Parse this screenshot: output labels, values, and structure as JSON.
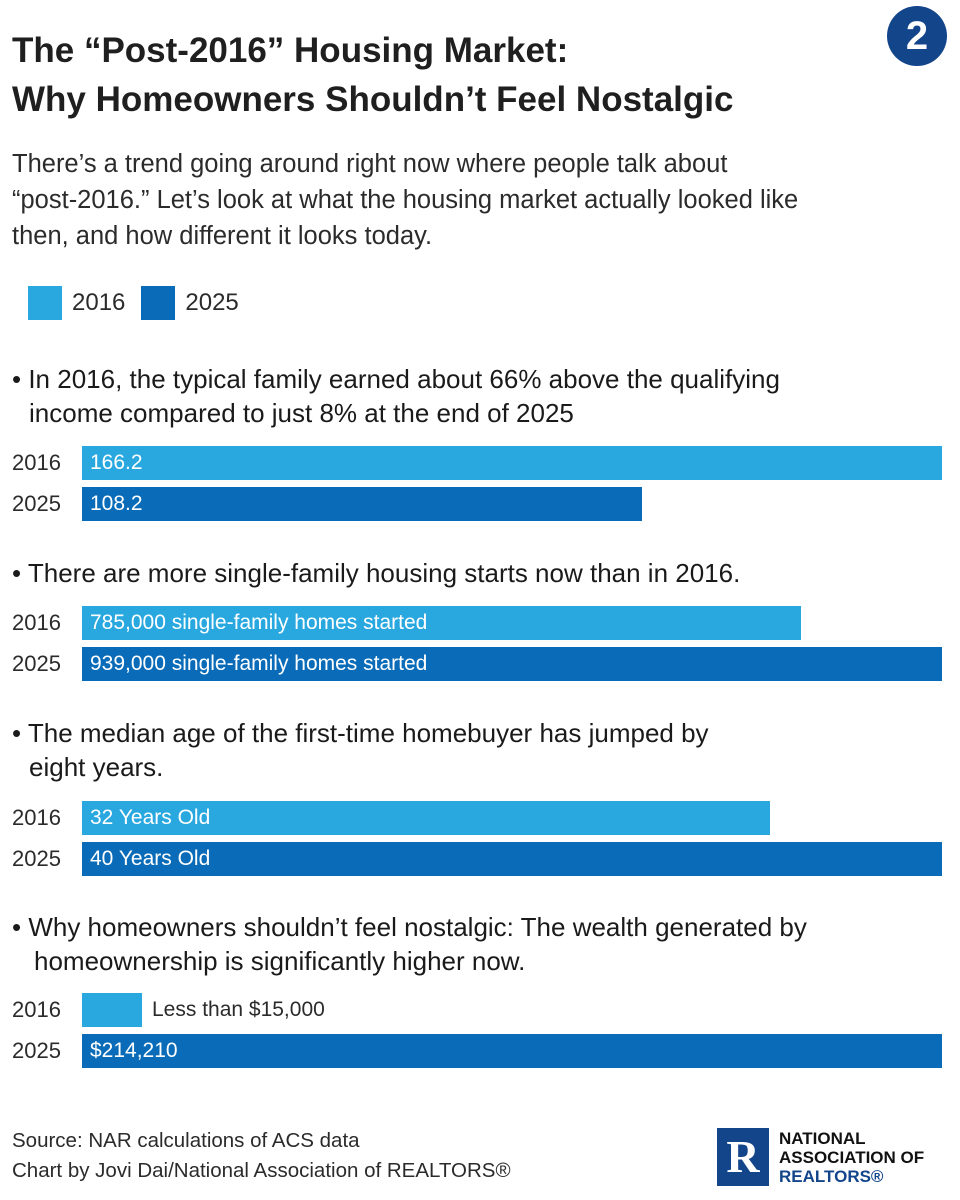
{
  "header": {
    "title_line1": "The “Post-2016” Housing Market:",
    "title_line2": "Why Homeowners Shouldn’t Feel Nostalgic",
    "badge_number": "2",
    "subtitle_line1": "There’s a trend going around right now where people talk about",
    "subtitle_line2": "“post-2016.” Let’s look at what the housing market actually looked like",
    "subtitle_line3": "then, and how different it looks today."
  },
  "legend": [
    {
      "label": "2016",
      "color": "#29a8e0"
    },
    {
      "label": "2025",
      "color": "#0a6cb8"
    }
  ],
  "chart_data": [
    {
      "type": "bar",
      "orientation": "horizontal",
      "heading_line1": "• In 2016, the typical family earned about 66% above the qualifying",
      "heading_line2": "income compared to just 8% at the end of 2025",
      "categories": [
        "2016",
        "2025"
      ],
      "values": [
        166.2,
        108.2
      ],
      "labels": [
        "166.2",
        "108.2"
      ]
    },
    {
      "type": "bar",
      "orientation": "horizontal",
      "heading_line1": "• There are more single-family housing starts now than in 2016.",
      "categories": [
        "2016",
        "2025"
      ],
      "values": [
        785000,
        939000
      ],
      "labels": [
        "785,000 single-family homes started",
        "939,000 single-family homes started"
      ]
    },
    {
      "type": "bar",
      "orientation": "horizontal",
      "heading_line1": "• The median age of the first-time homebuyer has jumped by",
      "heading_line2": "eight years.",
      "categories": [
        "2016",
        "2025"
      ],
      "values": [
        32,
        40
      ],
      "labels": [
        "32 Years Old",
        "40 Years Old"
      ]
    },
    {
      "type": "bar",
      "orientation": "horizontal",
      "heading_line1": "• Why homeowners shouldn’t feel nostalgic: The wealth generated by",
      "heading_line2": "homeownership is significantly higher now.",
      "categories": [
        "2016",
        "2025"
      ],
      "values": [
        15000,
        214210
      ],
      "labels": [
        "Less than $15,000",
        "$214,210"
      ]
    }
  ],
  "footer": {
    "source": "Source: NAR calculations of ACS data",
    "credit": "Chart by Jovi Dai/National Association of REALTORS®"
  },
  "logo": {
    "mark": "R",
    "line1": "NATIONAL",
    "line2": "ASSOCIATION OF",
    "line3": "REALTORS®"
  }
}
